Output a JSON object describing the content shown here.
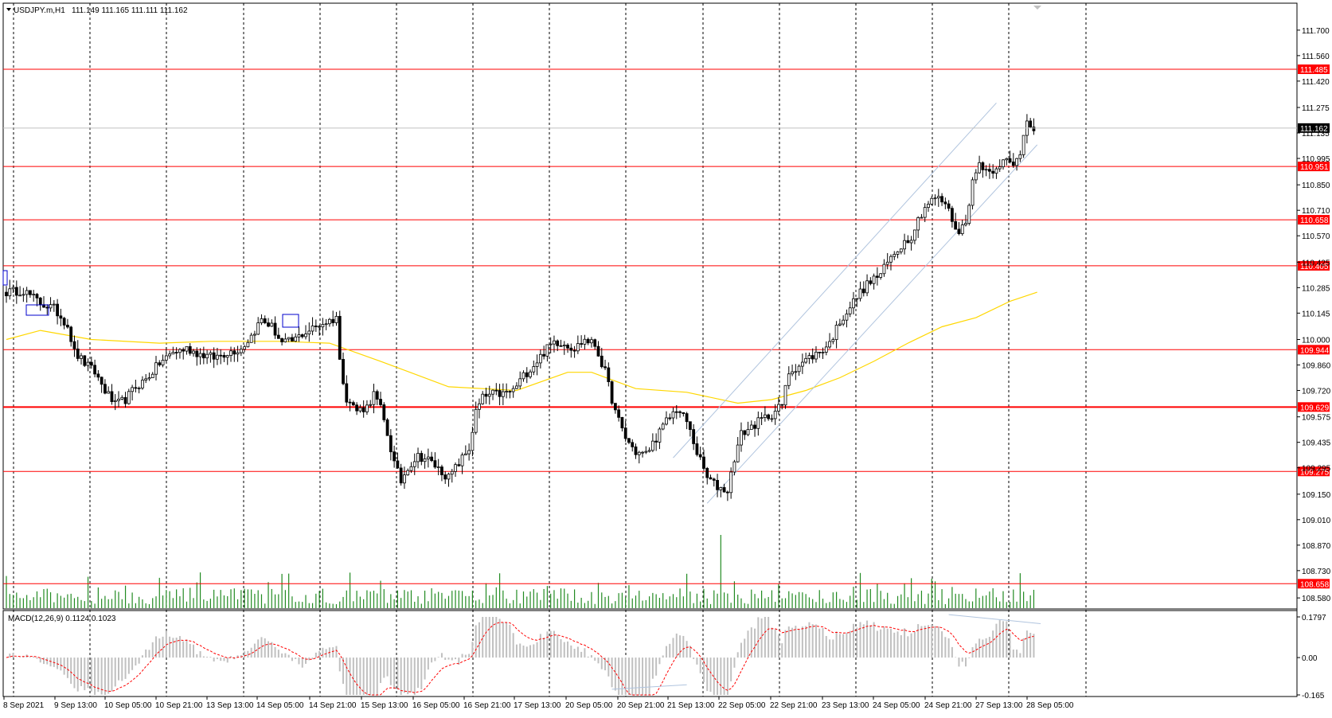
{
  "header": {
    "symbol": "USDJPY.m,H1",
    "ohlc": "111.149 111.165 111.111 111.162"
  },
  "macd": {
    "label": "MACD(12,26,9) 0.1124 0.1023",
    "axis_ticks": [
      "0.1797",
      "0.00",
      "-0.165"
    ]
  },
  "price_axis": {
    "ticks": [
      "111.700",
      "111.560",
      "111.420",
      "111.275",
      "111.135",
      "110.995",
      "110.850",
      "110.710",
      "110.570",
      "110.425",
      "110.285",
      "110.145",
      "110.000",
      "109.860",
      "109.720",
      "109.575",
      "109.435",
      "109.295",
      "109.150",
      "109.010",
      "108.870",
      "108.730",
      "108.580"
    ],
    "current_price": "111.162"
  },
  "levels": [
    {
      "label": "111.485",
      "value": 111.485
    },
    {
      "label": "110.951",
      "value": 110.951
    },
    {
      "label": "110.658",
      "value": 110.658
    },
    {
      "label": "110.405",
      "value": 110.405
    },
    {
      "label": "109.944",
      "value": 109.944
    },
    {
      "label": "109.629",
      "value": 109.629
    },
    {
      "label": "109.275",
      "value": 109.275
    },
    {
      "label": "108.658",
      "value": 108.658
    }
  ],
  "time_axis": [
    "8 Sep 2021",
    "9 Sep 13:00",
    "10 Sep 05:00",
    "10 Sep 21:00",
    "13 Sep 13:00",
    "14 Sep 05:00",
    "14 Sep 21:00",
    "15 Sep 13:00",
    "16 Sep 05:00",
    "16 Sep 21:00",
    "17 Sep 13:00",
    "20 Sep 05:00",
    "20 Sep 21:00",
    "21 Sep 13:00",
    "22 Sep 05:00",
    "22 Sep 21:00",
    "23 Sep 13:00",
    "24 Sep 05:00",
    "24 Sep 21:00",
    "27 Sep 13:00",
    "28 Sep 05:00"
  ],
  "colors": {
    "bull": "#ffffff",
    "bear": "#000000",
    "level": "#ff0000",
    "ma": "#ffd700",
    "volume": "#228b22",
    "macd_hist": "#c0c0c0",
    "macd_signal": "#ff0000",
    "channel": "#b0c4de",
    "grid": "#000000"
  },
  "chart_data": {
    "type": "candlestick",
    "price_range": [
      108.55,
      111.8
    ],
    "close_path": [
      [
        0,
        110.26
      ],
      [
        5,
        110.27
      ],
      [
        10,
        110.2
      ],
      [
        14,
        110.17
      ],
      [
        18,
        110.08
      ],
      [
        20,
        109.93
      ],
      [
        23,
        109.87
      ],
      [
        26,
        109.82
      ],
      [
        29,
        109.72
      ],
      [
        32,
        109.64
      ],
      [
        35,
        109.67
      ],
      [
        38,
        109.74
      ],
      [
        41,
        109.78
      ],
      [
        45,
        109.87
      ],
      [
        49,
        109.93
      ],
      [
        53,
        109.95
      ],
      [
        57,
        109.92
      ],
      [
        61,
        109.9
      ],
      [
        65,
        109.93
      ],
      [
        69,
        109.95
      ],
      [
        72,
        110.02
      ],
      [
        75,
        110.11
      ],
      [
        78,
        110.07
      ],
      [
        81,
        109.98
      ],
      [
        84,
        109.99
      ],
      [
        87,
        110.03
      ],
      [
        90,
        110.06
      ],
      [
        93,
        110.09
      ],
      [
        96,
        110.11
      ],
      [
        97,
        110.13
      ],
      [
        98,
        109.88
      ],
      [
        100,
        109.68
      ],
      [
        103,
        109.61
      ],
      [
        106,
        109.63
      ],
      [
        108,
        109.7
      ],
      [
        110,
        109.62
      ],
      [
        112,
        109.48
      ],
      [
        114,
        109.32
      ],
      [
        116,
        109.22
      ],
      [
        118,
        109.3
      ],
      [
        121,
        109.36
      ],
      [
        124,
        109.34
      ],
      [
        127,
        109.29
      ],
      [
        130,
        109.24
      ],
      [
        133,
        109.32
      ],
      [
        136,
        109.4
      ],
      [
        138,
        109.6
      ],
      [
        140,
        109.68
      ],
      [
        143,
        109.7
      ],
      [
        146,
        109.7
      ],
      [
        149,
        109.72
      ],
      [
        152,
        109.8
      ],
      [
        155,
        109.86
      ],
      [
        158,
        109.93
      ],
      [
        161,
        109.99
      ],
      [
        164,
        109.98
      ],
      [
        167,
        109.95
      ],
      [
        170,
        110.0
      ],
      [
        173,
        109.97
      ],
      [
        176,
        109.82
      ],
      [
        179,
        109.6
      ],
      [
        182,
        109.46
      ],
      [
        185,
        109.38
      ],
      [
        188,
        109.37
      ],
      [
        191,
        109.46
      ],
      [
        194,
        109.55
      ],
      [
        197,
        109.62
      ],
      [
        200,
        109.55
      ],
      [
        203,
        109.38
      ],
      [
        206,
        109.24
      ],
      [
        209,
        109.19
      ],
      [
        212,
        109.17
      ],
      [
        214,
        109.35
      ],
      [
        216,
        109.48
      ],
      [
        219,
        109.52
      ],
      [
        222,
        109.56
      ],
      [
        225,
        109.59
      ],
      [
        228,
        109.64
      ],
      [
        230,
        109.82
      ],
      [
        233,
        109.86
      ],
      [
        236,
        109.9
      ],
      [
        239,
        109.93
      ],
      [
        242,
        109.98
      ],
      [
        245,
        110.1
      ],
      [
        248,
        110.18
      ],
      [
        251,
        110.26
      ],
      [
        254,
        110.32
      ],
      [
        257,
        110.36
      ],
      [
        260,
        110.45
      ],
      [
        263,
        110.52
      ],
      [
        266,
        110.57
      ],
      [
        268,
        110.66
      ],
      [
        270,
        110.73
      ],
      [
        273,
        110.78
      ],
      [
        276,
        110.75
      ],
      [
        278,
        110.66
      ],
      [
        280,
        110.58
      ],
      [
        282,
        110.66
      ],
      [
        284,
        110.86
      ],
      [
        286,
        110.97
      ],
      [
        289,
        110.92
      ],
      [
        292,
        110.97
      ],
      [
        294,
        110.98
      ],
      [
        296,
        110.95
      ],
      [
        298,
        111.03
      ],
      [
        300,
        111.22
      ],
      [
        302,
        111.16
      ]
    ],
    "ma_path": [
      [
        0,
        110.0
      ],
      [
        10,
        110.05
      ],
      [
        25,
        110.0
      ],
      [
        45,
        109.98
      ],
      [
        60,
        109.99
      ],
      [
        80,
        109.99
      ],
      [
        95,
        109.98
      ],
      [
        110,
        109.88
      ],
      [
        130,
        109.74
      ],
      [
        150,
        109.72
      ],
      [
        165,
        109.82
      ],
      [
        172,
        109.82
      ],
      [
        185,
        109.73
      ],
      [
        200,
        109.71
      ],
      [
        215,
        109.65
      ],
      [
        225,
        109.67
      ],
      [
        235,
        109.72
      ],
      [
        245,
        109.79
      ],
      [
        255,
        109.88
      ],
      [
        265,
        109.98
      ],
      [
        275,
        110.07
      ],
      [
        285,
        110.12
      ],
      [
        295,
        110.21
      ],
      [
        303,
        110.26
      ]
    ],
    "channel": [
      {
        "from": [
          196,
          109.35
        ],
        "to": [
          291,
          111.3
        ]
      },
      {
        "from": [
          206,
          109.1
        ],
        "to": [
          303,
          111.07
        ]
      }
    ],
    "macd_range": [
      -0.165,
      0.1797
    ]
  }
}
